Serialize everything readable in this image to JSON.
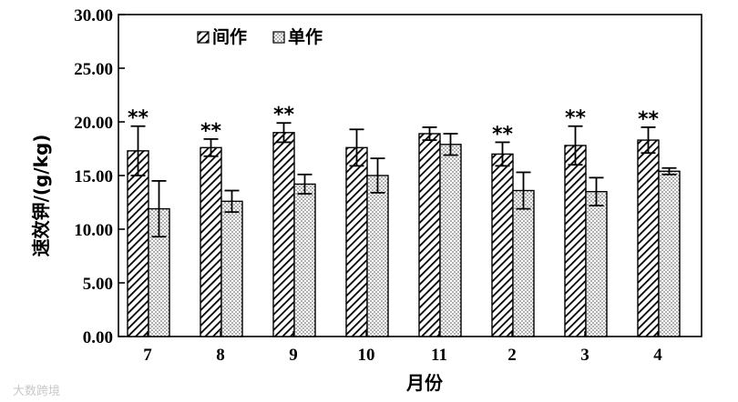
{
  "chart_data": {
    "type": "bar",
    "title": "",
    "xlabel": "月份",
    "ylabel": "速效钾/(g/kg)",
    "ylim": [
      0,
      30
    ],
    "yticks": [
      "0.00",
      "5.00",
      "10.00",
      "15.00",
      "20.00",
      "25.00",
      "30.00"
    ],
    "categories": [
      "7",
      "8",
      "9",
      "10",
      "11",
      "2",
      "3",
      "4"
    ],
    "series": [
      {
        "name": "间作",
        "pattern": "hatched",
        "values": [
          17.3,
          17.6,
          19.0,
          17.6,
          18.9,
          17.0,
          17.8,
          18.3
        ],
        "errors": [
          2.3,
          0.8,
          0.9,
          1.7,
          0.6,
          1.1,
          1.8,
          1.2
        ]
      },
      {
        "name": "单作",
        "pattern": "dotted",
        "values": [
          11.9,
          12.6,
          14.2,
          15.0,
          17.9,
          13.6,
          13.5,
          15.4
        ],
        "errors": [
          2.6,
          1.0,
          0.9,
          1.6,
          1.0,
          1.7,
          1.3,
          0.3
        ]
      }
    ],
    "annotations": [
      "**",
      "**",
      "**",
      "",
      "",
      "**",
      "**",
      "**"
    ],
    "legend_position": "top-left",
    "grid": false
  },
  "watermark": "大数跨境"
}
